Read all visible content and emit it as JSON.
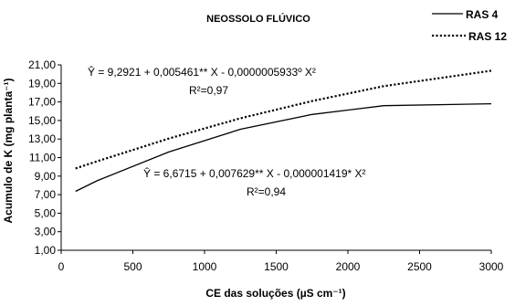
{
  "chart_data": {
    "type": "line",
    "title": "NEOSSOLO FLÚVICO",
    "xlabel": "CE das soluções (µS cm⁻¹)",
    "ylabel": "Acumulo de K (mg planta⁻¹)",
    "x_ticks": [
      "0",
      "500",
      "1000",
      "1500",
      "2000",
      "2500",
      "3000"
    ],
    "y_ticks": [
      "1,00",
      "3,00",
      "5,00",
      "7,00",
      "9,00",
      "11,00",
      "13,00",
      "15,00",
      "17,00",
      "19,00",
      "21,00"
    ],
    "xlim": [
      0,
      3000
    ],
    "ylim": [
      1,
      21
    ],
    "x": [
      100,
      250,
      750,
      1250,
      1750,
      2250,
      3000
    ],
    "series": [
      {
        "name": "RAS 4",
        "style": "solid",
        "color": "#000000",
        "values": [
          7.35,
          8.5,
          11.6,
          14.05,
          15.65,
          16.6,
          16.8
        ]
      },
      {
        "name": "RAS 12",
        "style": "dotted",
        "color": "#000000",
        "values": [
          9.83,
          10.6,
          13.05,
          15.24,
          17.1,
          18.7,
          20.37
        ]
      }
    ],
    "annotations": {
      "ras12_eq": "Ŷ =  9,2921 + 0,005461** X - 0,0000005933º X²",
      "ras12_r2": "R²=0,97",
      "ras4_eq": "Ŷ =  6,6715 + 0,007629** X - 0,000001419* X²",
      "ras4_r2": "R²=0,94"
    },
    "legend_position": "top-right",
    "grid": false
  }
}
